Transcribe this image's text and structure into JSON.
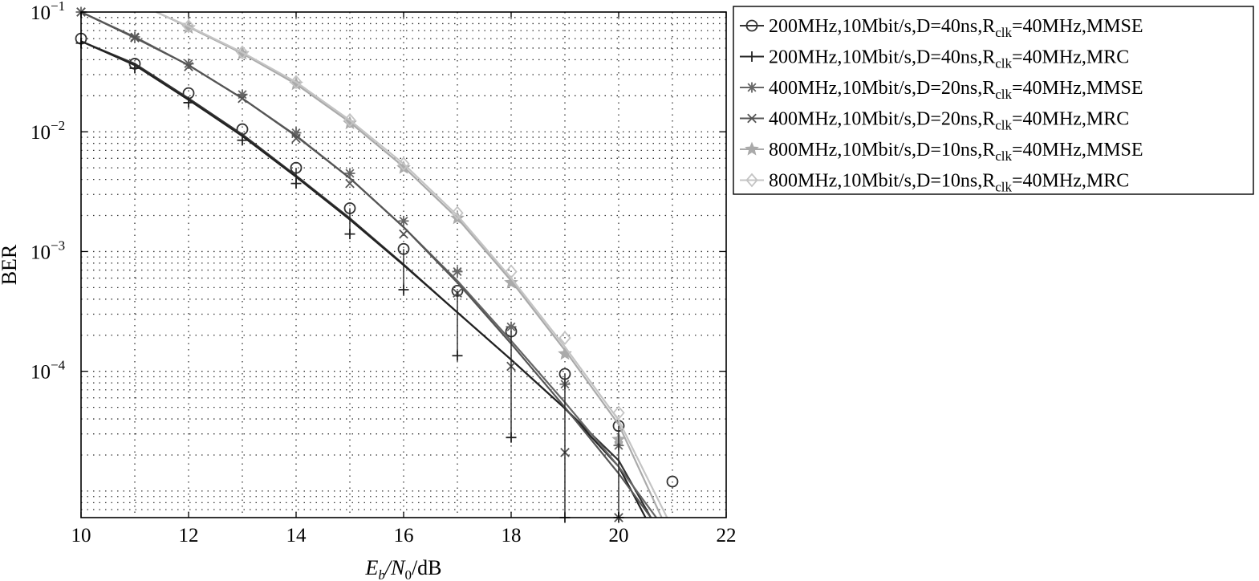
{
  "chart_data": {
    "type": "line",
    "title": "",
    "xlabel": {
      "main": "E",
      "sub1": "b",
      "mid": "/N",
      "sub2": "0",
      "tail": "/dB"
    },
    "ylabel": "BER",
    "x_scale": "linear",
    "y_scale": "log",
    "xlim": [
      10,
      22
    ],
    "ylim": [
      6e-06,
      0.1
    ],
    "grid": true,
    "legend_position": "outside-top-right",
    "x_ticks": [
      10,
      12,
      14,
      16,
      18,
      20,
      22
    ],
    "x_tick_labels": [
      "10",
      "12",
      "14",
      "16",
      "18",
      "20",
      "22"
    ],
    "y_ticks": [
      0.1,
      0.01,
      0.001,
      0.0001
    ],
    "y_tick_labels": [
      {
        "base": "10",
        "exp": "−1"
      },
      {
        "base": "10",
        "exp": "−2"
      },
      {
        "base": "10",
        "exp": "−3"
      },
      {
        "base": "10",
        "exp": "−4"
      }
    ],
    "series": [
      {
        "label": {
          "pre": "200MHz,10Mbit/s,D=40ns,R",
          "sub": "clk",
          "post": "=40MHz,MMSE"
        },
        "color": "#333333",
        "marker": "circle",
        "curve": {
          "x": [
            10,
            11,
            12,
            13,
            14,
            15,
            16,
            17,
            18,
            19,
            20,
            20.6
          ],
          "y": [
            0.057,
            0.037,
            0.019,
            0.0095,
            0.0043,
            0.0019,
            0.00078,
            0.00031,
            0.000125,
            4.9e-05,
            1.8e-05,
            6e-06
          ]
        },
        "points": {
          "x": [
            10,
            11,
            12,
            13,
            14,
            15,
            16,
            17,
            18,
            19,
            20,
            21
          ],
          "y": [
            0.06,
            0.037,
            0.021,
            0.0105,
            0.005,
            0.0023,
            0.00105,
            0.00047,
            0.000215,
            9.5e-05,
            3.5e-05,
            1.2e-05
          ]
        }
      },
      {
        "label": {
          "pre": "200MHz,10Mbit/s,D=40ns,R",
          "sub": "clk",
          "post": "=40MHz,MRC"
        },
        "color": "#222222",
        "marker": "plus",
        "curve": {
          "x": [
            10,
            11,
            12,
            13,
            14,
            15,
            16,
            17,
            18,
            19,
            20,
            20.5
          ],
          "y": [
            0.057,
            0.036,
            0.0185,
            0.0092,
            0.0042,
            0.00185,
            0.00077,
            0.00031,
            0.000125,
            4.9e-05,
            1.6e-05,
            6e-06
          ]
        },
        "points": {
          "x": [
            10,
            11,
            12,
            13,
            14,
            15,
            16,
            17,
            18,
            19,
            20
          ],
          "y": [
            0.055,
            0.034,
            0.0175,
            0.0085,
            0.0037,
            0.0014,
            0.00048,
            0.000135,
            2.8e-05,
            6e-06,
            6e-06
          ]
        }
      },
      {
        "label": {
          "pre": "400MHz,10Mbit/s,D=20ns,R",
          "sub": "clk",
          "post": "=40MHz,MMSE"
        },
        "color": "#666666",
        "marker": "asterisk",
        "curve": {
          "x": [
            10,
            11,
            12,
            13,
            14,
            15,
            16,
            17,
            18,
            19,
            20,
            20.7
          ],
          "y": [
            0.1,
            0.062,
            0.036,
            0.019,
            0.0093,
            0.0041,
            0.0016,
            0.00057,
            0.00018,
            5.5e-05,
            1.6e-05,
            6e-06
          ]
        },
        "points": {
          "x": [
            10,
            11,
            12,
            13,
            14,
            15,
            16,
            17,
            18,
            19,
            20
          ],
          "y": [
            0.1,
            0.062,
            0.037,
            0.0205,
            0.0098,
            0.0045,
            0.0018,
            0.00068,
            0.000235,
            7.8e-05,
            2.4e-05
          ]
        }
      },
      {
        "label": {
          "pre": "400MHz,10Mbit/s,D=20ns,R",
          "sub": "clk",
          "post": "=40MHz,MRC"
        },
        "color": "#555555",
        "marker": "cross",
        "curve": {
          "x": [
            10,
            11,
            12,
            13,
            14,
            15,
            16,
            17,
            18,
            19,
            20,
            20.6
          ],
          "y": [
            0.1,
            0.061,
            0.036,
            0.019,
            0.0092,
            0.0041,
            0.0016,
            0.00055,
            0.00017,
            5e-05,
            1.4e-05,
            6e-06
          ]
        },
        "points": {
          "x": [
            10,
            11,
            12,
            13,
            14,
            15,
            16,
            17,
            18,
            19,
            20
          ],
          "y": [
            0.1,
            0.061,
            0.035,
            0.019,
            0.0088,
            0.0037,
            0.0014,
            0.00045,
            0.00011,
            2.1e-05,
            6e-06
          ]
        }
      },
      {
        "label": {
          "pre": "800MHz,10Mbit/s,D=10ns,R",
          "sub": "clk",
          "post": "=40MHz,MMSE"
        },
        "color": "#aaaaaa",
        "marker": "star",
        "curve": {
          "x": [
            11.4,
            12,
            13,
            14,
            15,
            16,
            17,
            18,
            19,
            20,
            20.8
          ],
          "y": [
            0.1,
            0.075,
            0.045,
            0.025,
            0.012,
            0.0051,
            0.0019,
            0.00057,
            0.00015,
            3.6e-05,
            6e-06
          ]
        },
        "points": {
          "x": [
            12,
            13,
            14,
            15,
            16,
            17,
            18,
            19,
            20
          ],
          "y": [
            0.074,
            0.045,
            0.025,
            0.0118,
            0.005,
            0.0019,
            0.00055,
            0.00014,
            2.7e-05
          ]
        }
      },
      {
        "label": {
          "pre": "800MHz,10Mbit/s,D=10ns,R",
          "sub": "clk",
          "post": "=40MHz,MRC"
        },
        "color": "#c4c4c4",
        "marker": "diamond",
        "curve": {
          "x": [
            11.4,
            12,
            13,
            14,
            15,
            16,
            17,
            18,
            19,
            20,
            20.9
          ],
          "y": [
            0.1,
            0.076,
            0.046,
            0.026,
            0.0125,
            0.0054,
            0.002,
            0.0006,
            0.00016,
            3.9e-05,
            6e-06
          ]
        },
        "points": {
          "x": [
            12,
            13,
            14,
            15,
            16,
            17,
            18,
            19,
            20
          ],
          "y": [
            0.076,
            0.046,
            0.026,
            0.0125,
            0.0054,
            0.0021,
            0.00068,
            0.00019,
            4.5e-05
          ]
        }
      }
    ]
  }
}
